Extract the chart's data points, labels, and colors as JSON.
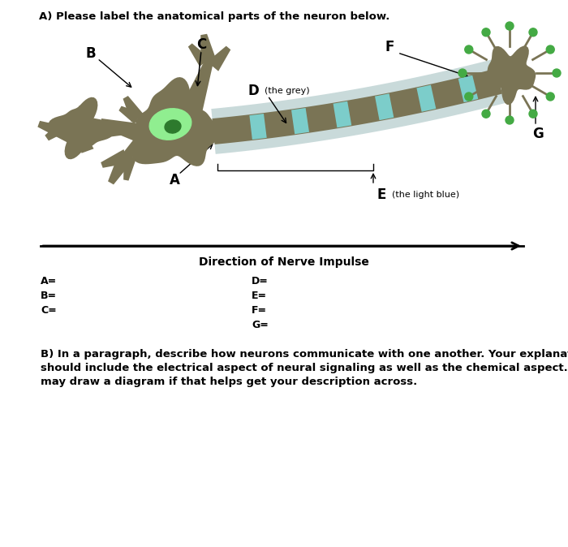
{
  "question_a": "A) Please label the anatomical parts of the neuron below.",
  "question_b": "B) In a paragraph, describe how neurons communicate with one another. Your explanation\nshould include the electrical aspect of neural signaling as well as the chemical aspect. You\nmay draw a diagram if that helps get your description across.",
  "direction_label": "Direction of Nerve Impulse",
  "labels_left": [
    "A=",
    "B=",
    "C="
  ],
  "labels_right": [
    "D=",
    "E=",
    "F=",
    "G="
  ],
  "neuron_color": "#7a7455",
  "axon_core_color": "#7a7455",
  "myelin_cyan_color": "#7dd8d8",
  "myelin_grey_color": "#b8cece",
  "nucleus_green_color": "#90ee90",
  "nucleus_dark_color": "#2d7a2d",
  "tip_green_color": "#44aa44",
  "background_color": "#FFFFFF"
}
